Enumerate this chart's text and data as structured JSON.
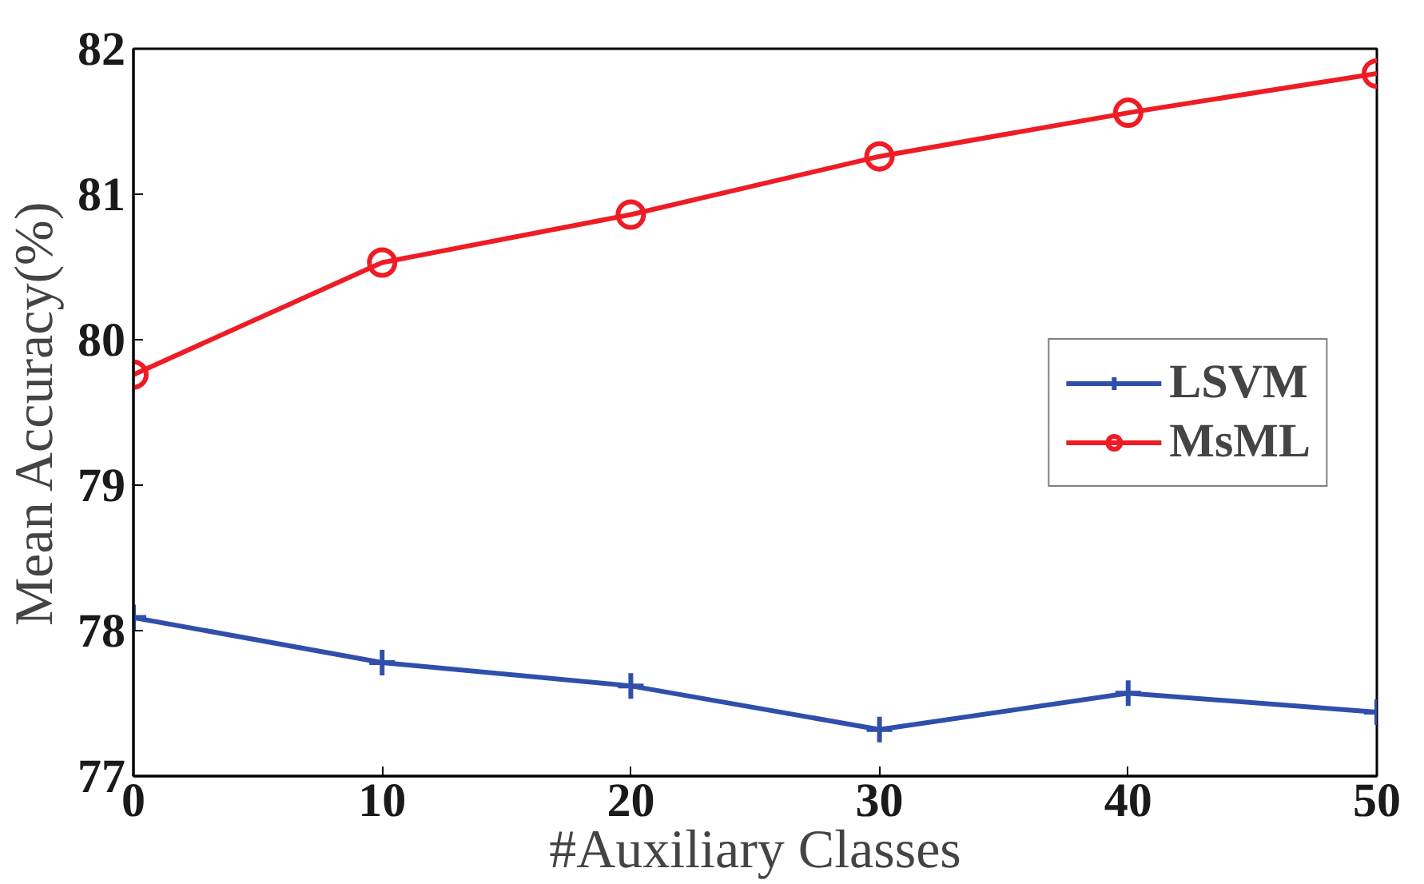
{
  "chart_data": {
    "type": "line",
    "xlabel": "#Auxiliary Classes",
    "ylabel": "Mean Accuracy(%)",
    "x": [
      0,
      10,
      20,
      30,
      40,
      50
    ],
    "series": [
      {
        "name": "LSVM",
        "color": "#2f4fab",
        "marker": "cross",
        "values": [
          78.09,
          77.78,
          77.62,
          77.32,
          77.57,
          77.44
        ]
      },
      {
        "name": "MsML",
        "color": "#ee1c25",
        "marker": "circle",
        "values": [
          79.76,
          80.53,
          80.86,
          81.26,
          81.56,
          81.83
        ]
      }
    ],
    "xlim": [
      0,
      50
    ],
    "xticks": [
      0,
      10,
      20,
      30,
      40,
      50
    ],
    "ylim": [
      77,
      82
    ],
    "yticks": [
      77,
      78,
      79,
      80,
      81,
      82
    ],
    "grid": false,
    "legend": "right",
    "line_style": "solid"
  }
}
